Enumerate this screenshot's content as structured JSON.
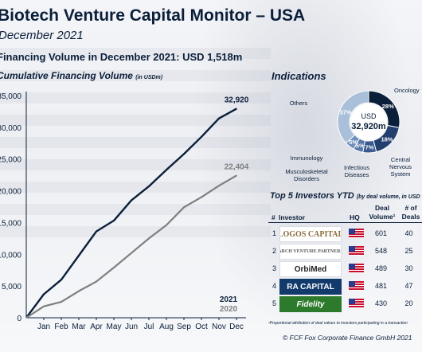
{
  "header": {
    "title": "Biotech Venture Capital Monitor – USA",
    "subtitle": "December 2021",
    "headline": "Financing Volume in December 2021: USD 1,518m"
  },
  "chart_data": [
    {
      "type": "line",
      "title": "Cumulative Financing Volume",
      "unit_note": "(in USDm)",
      "categories": [
        "Jan",
        "Feb",
        "Mar",
        "Apr",
        "May",
        "Jun",
        "Jul",
        "Aug",
        "Sep",
        "Oct",
        "Nov",
        "Dec"
      ],
      "y_ticks": [
        "0",
        "5,000",
        "10,000",
        "15,000",
        "20,000",
        "25,000",
        "30,000",
        "35,000"
      ],
      "ylim": [
        0,
        35000
      ],
      "grid": false,
      "series": [
        {
          "name": "2021",
          "color": "#0b1f3a",
          "values": [
            3700,
            6000,
            9800,
            13600,
            15300,
            18500,
            20700,
            23300,
            25800,
            28500,
            31400,
            32920
          ]
        },
        {
          "name": "2020",
          "color": "#7f7f7f",
          "values": [
            1800,
            2500,
            4200,
            5700,
            7900,
            10200,
            12500,
            14600,
            17400,
            19000,
            20800,
            22404
          ]
        }
      ],
      "end_labels": [
        "32,920",
        "22,404"
      ]
    },
    {
      "type": "pie",
      "title": "Indications",
      "center_label": "USD",
      "center_value": "32,920m",
      "slices": [
        {
          "label": "Oncology",
          "value": 28,
          "text": "28%",
          "color": "#0b1f3a"
        },
        {
          "label": "Central Nervous System",
          "value": 18,
          "text": "18%",
          "color": "#233f6e"
        },
        {
          "label": "Infectious Diseases",
          "value": 7,
          "text": "7%",
          "color": "#3a5a8f"
        },
        {
          "label": "Musculoskeletal Disorders",
          "value": 5,
          "text": "5%",
          "color": "#5677a8"
        },
        {
          "label": "Immunology",
          "value": 5,
          "text": "5%",
          "color": "#6f8fbd"
        },
        {
          "label": "Others",
          "value": 37,
          "text": "37%",
          "color": "#a9bfda"
        }
      ]
    }
  ],
  "investors": {
    "title": "Top 5 Investors YTD",
    "title_note": "(by deal volume, in USD",
    "col_rank": "#",
    "col_investor": "Investor",
    "col_hq": "HQ",
    "col_volume": "Deal Volume¹",
    "col_deals": "# of Deals",
    "rows": [
      {
        "rank": "1",
        "name": "LOGOS CAPITAL",
        "volume": "601",
        "deals": "40"
      },
      {
        "rank": "2",
        "name": "ARCH VENTURE PARTNERS",
        "volume": "548",
        "deals": "25"
      },
      {
        "rank": "3",
        "name": "OrbiMed",
        "volume": "489",
        "deals": "30"
      },
      {
        "rank": "4",
        "name": "RA CAPITAL",
        "volume": "481",
        "deals": "47"
      },
      {
        "rank": "5",
        "name": "Fidelity",
        "volume": "430",
        "deals": "20"
      }
    ],
    "footnote": "¹Proportional attribution of deal values to investors participating in a transaction",
    "copyright": "© FCF Fox Corporate Finance GmbH 2021"
  }
}
